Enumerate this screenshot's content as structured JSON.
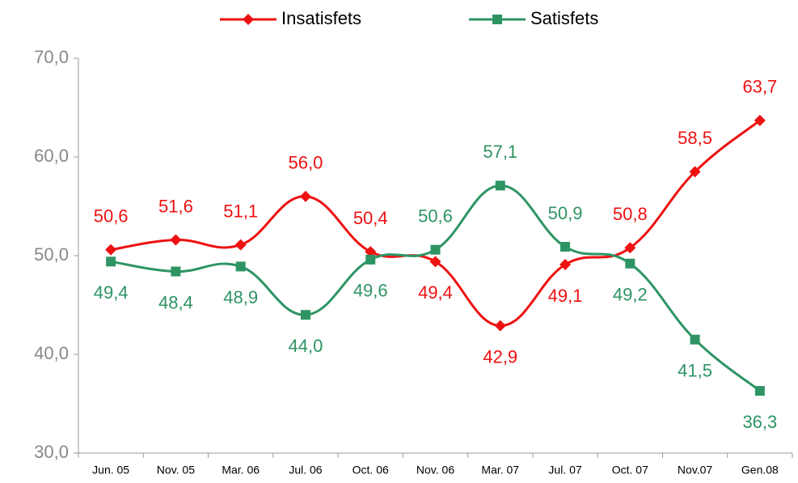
{
  "chart_data": {
    "type": "line",
    "categories": [
      "Jun. 05",
      "Nov. 05",
      "Mar. 06",
      "Jul. 06",
      "Oct. 06",
      "Nov. 06",
      "Mar. 07",
      "Jul. 07",
      "Oct. 07",
      "Nov.07",
      "Gen.08"
    ],
    "series": [
      {
        "name": "Insatisfets",
        "color": "#ee1111",
        "marker": "diamond",
        "values": [
          50.6,
          51.6,
          51.1,
          56.0,
          50.4,
          49.4,
          42.9,
          49.1,
          50.8,
          58.5,
          63.7
        ],
        "value_labels": [
          "50,6",
          "51,6",
          "51,1",
          "56,0",
          "50,4",
          "49,4",
          "42,9",
          "49,1",
          "50,8",
          "58,5",
          "63,7"
        ]
      },
      {
        "name": "Satisfets",
        "color": "#2e9464",
        "marker": "square",
        "values": [
          49.4,
          48.4,
          48.9,
          44.0,
          49.6,
          50.6,
          57.1,
          50.9,
          49.2,
          41.5,
          36.3
        ],
        "value_labels": [
          "49,4",
          "48,4",
          "48,9",
          "44,0",
          "49,6",
          "50,6",
          "57,1",
          "50,9",
          "49,2",
          "41,5",
          "36,3"
        ]
      }
    ],
    "ylim": [
      30,
      70
    ],
    "yticks": [
      {
        "value": 30,
        "label": "30,0"
      },
      {
        "value": 40,
        "label": "40,0"
      },
      {
        "value": 50,
        "label": "50,0"
      },
      {
        "value": 60,
        "label": "60,0"
      },
      {
        "value": 70,
        "label": "70,0"
      }
    ],
    "legend": "top",
    "grid": false
  }
}
